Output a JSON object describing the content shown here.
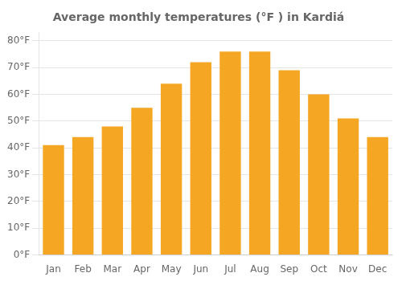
{
  "chart_data": {
    "type": "bar",
    "title": "Average monthly temperatures (°F ) in Kardiá",
    "categories": [
      "Jan",
      "Feb",
      "Mar",
      "Apr",
      "May",
      "Jun",
      "Jul",
      "Aug",
      "Sep",
      "Oct",
      "Nov",
      "Dec"
    ],
    "values": [
      41,
      44,
      48,
      55,
      64,
      72,
      76,
      76,
      69,
      60,
      51,
      44
    ],
    "color": "#F5A623",
    "ylim": [
      0,
      83
    ],
    "yticks": [
      {
        "value": 0,
        "label": "0°F"
      },
      {
        "value": 10,
        "label": "10°F"
      },
      {
        "value": 20,
        "label": "20°F"
      },
      {
        "value": 30,
        "label": "30°F"
      },
      {
        "value": 40,
        "label": "40°F"
      },
      {
        "value": 50,
        "label": "50°F"
      },
      {
        "value": 60,
        "label": "60°F"
      },
      {
        "value": 70,
        "label": "70°F"
      },
      {
        "value": 80,
        "label": "80°F"
      }
    ],
    "grid": true
  }
}
